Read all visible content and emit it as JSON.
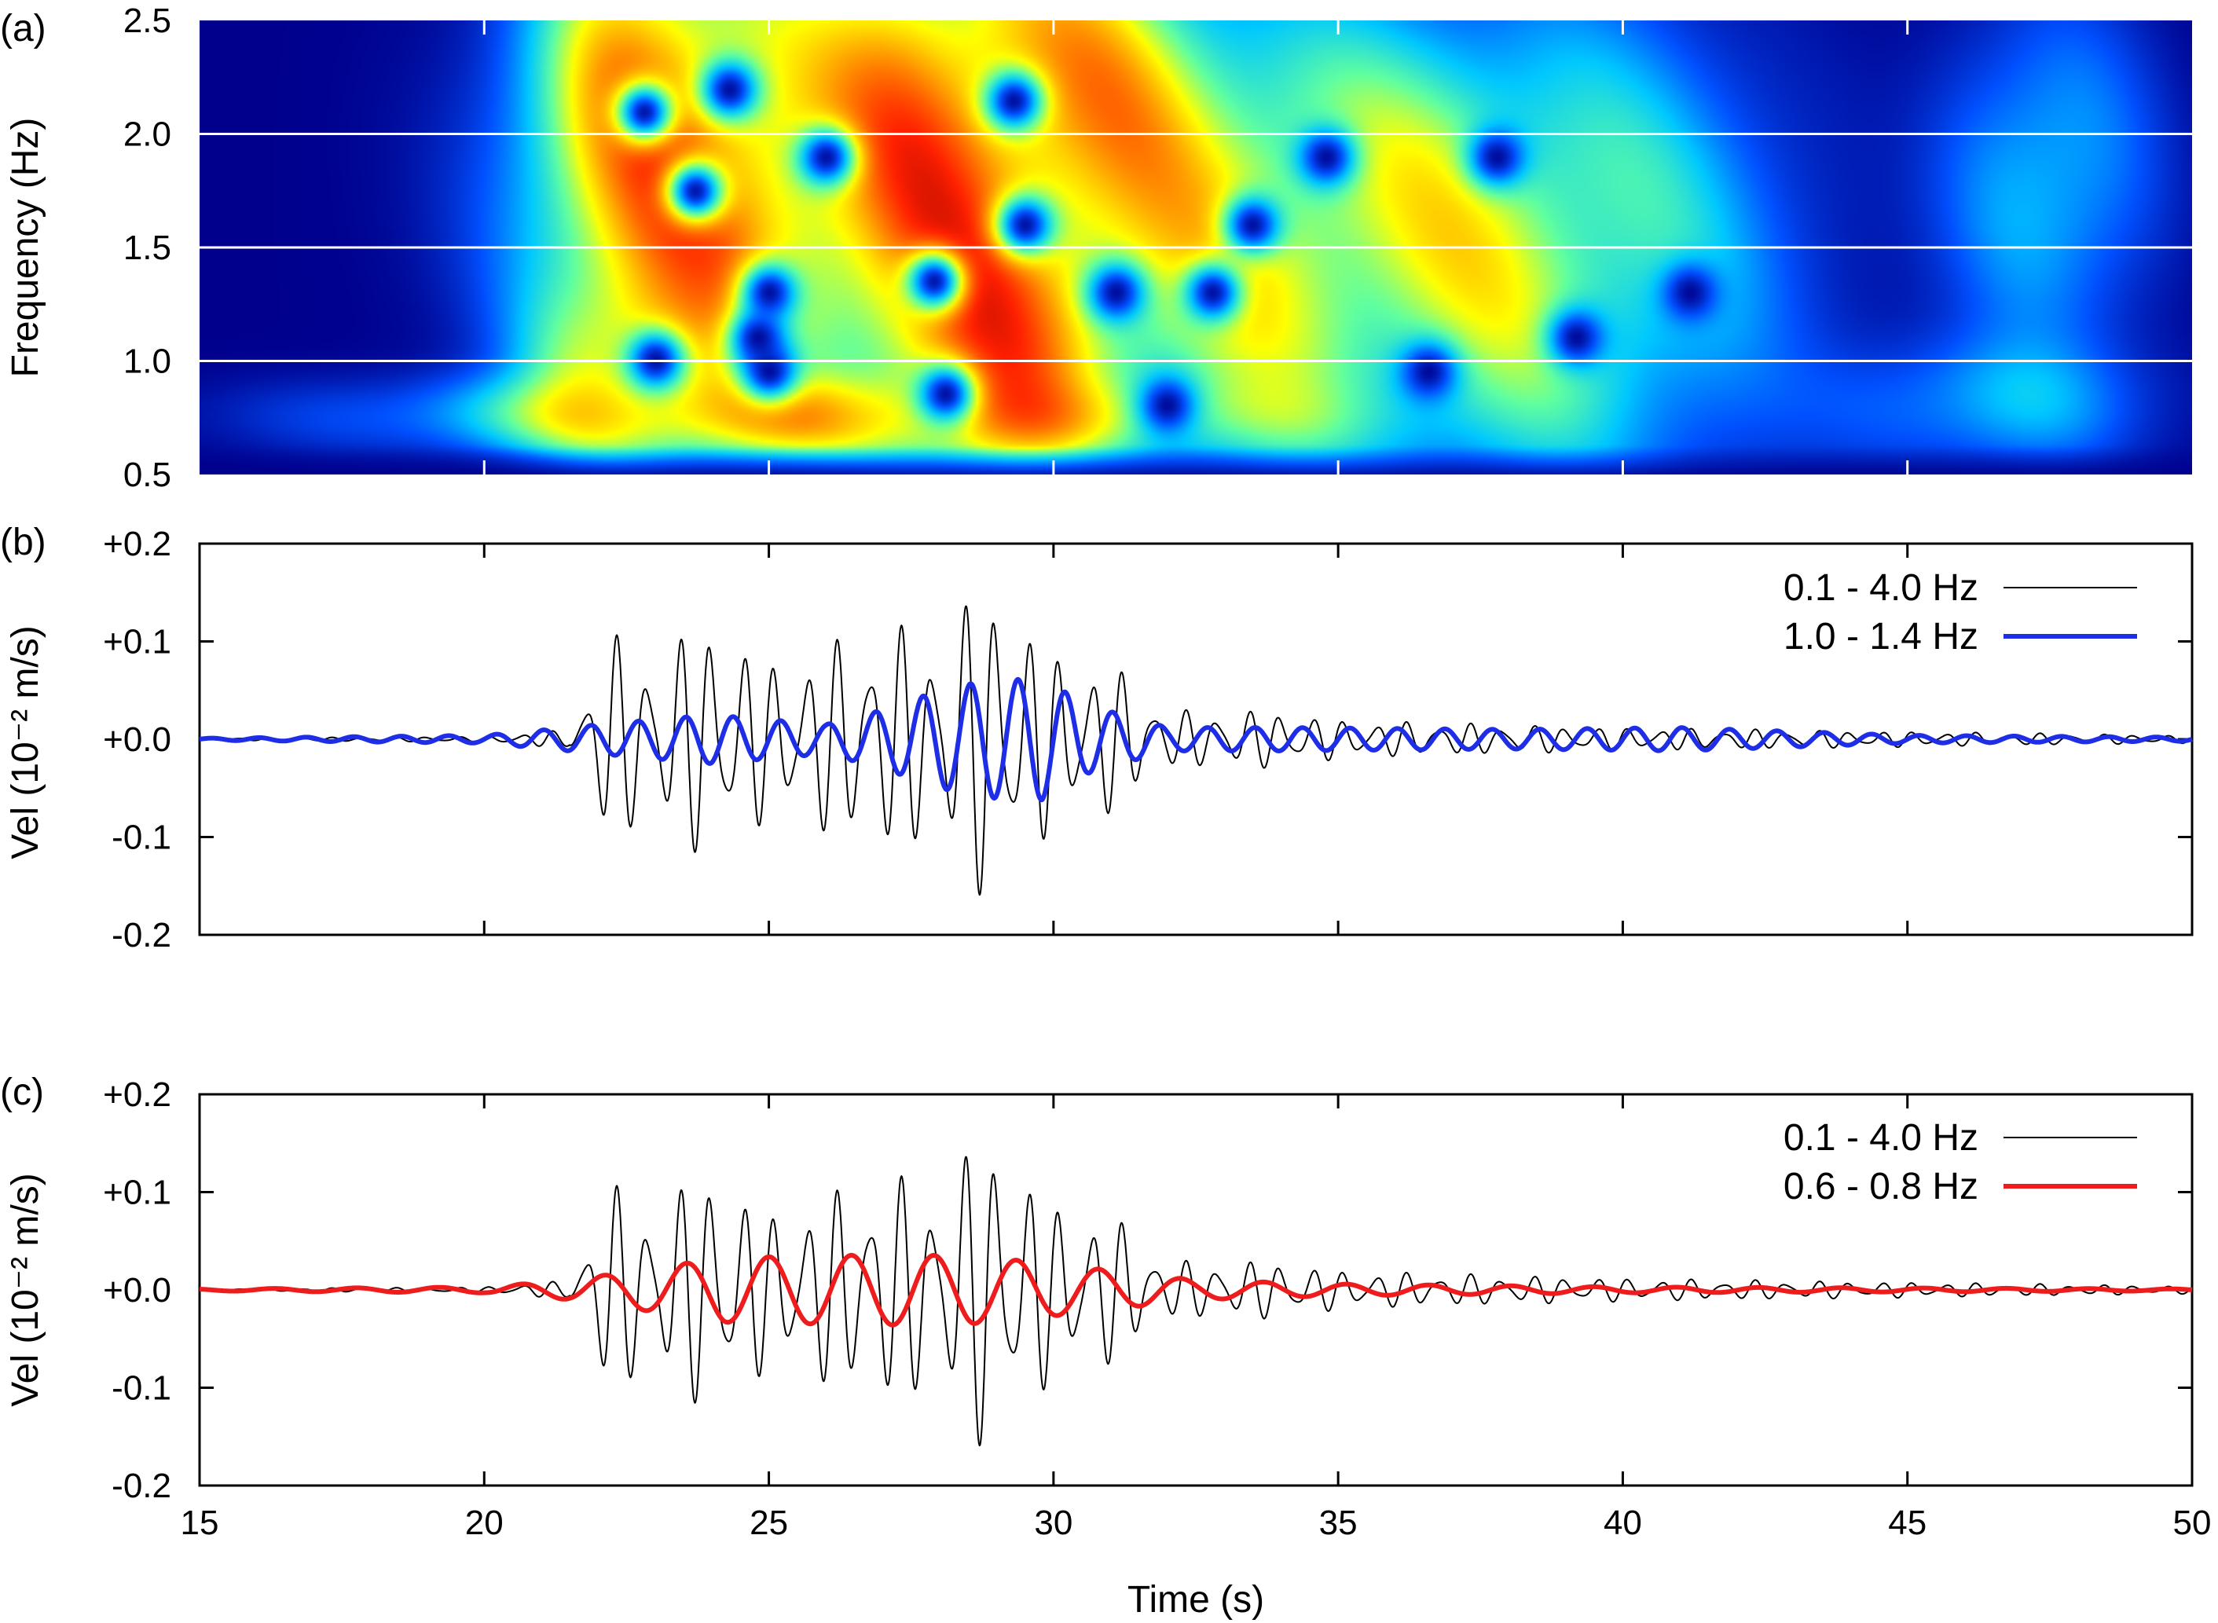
{
  "chart_data": [
    {
      "panel_label": "(a)",
      "type": "heatmap",
      "xlim": [
        15,
        50
      ],
      "ylim": [
        0.5,
        2.5
      ],
      "ylabel": "Frequency (Hz)",
      "y_ticks": [
        "0.5",
        "1.0",
        "1.5",
        "2.0",
        "2.5"
      ],
      "x_ticks": [
        20,
        25,
        30,
        35,
        40,
        45
      ],
      "reference_lines_hz": [
        1.0,
        1.5,
        2.0
      ],
      "colorscale": [
        "#00008c",
        "#0050ff",
        "#00c8ff",
        "#60ffa0",
        "#ffff00",
        "#ff9000",
        "#ff2000",
        "#8c0000"
      ],
      "energy_blobs": [
        {
          "t": 25.2,
          "f": 1.8,
          "st": 2.4,
          "sf": 0.6,
          "a": 0.9
        },
        {
          "t": 28.3,
          "f": 1.8,
          "st": 1.2,
          "sf": 0.75,
          "a": 1.0
        },
        {
          "t": 23.0,
          "f": 2.0,
          "st": 1.3,
          "sf": 0.7,
          "a": 0.8
        },
        {
          "t": 30.5,
          "f": 2.1,
          "st": 1.4,
          "sf": 0.5,
          "a": 0.75
        },
        {
          "t": 26.0,
          "f": 0.75,
          "st": 4.5,
          "sf": 0.12,
          "a": 0.65
        },
        {
          "t": 29.5,
          "f": 1.1,
          "st": 1.2,
          "sf": 0.3,
          "a": 0.7
        },
        {
          "t": 22.5,
          "f": 1.0,
          "st": 1.0,
          "sf": 0.25,
          "a": 0.55
        },
        {
          "t": 33.0,
          "f": 1.5,
          "st": 1.8,
          "sf": 0.7,
          "a": 0.45
        },
        {
          "t": 36.0,
          "f": 1.6,
          "st": 2.5,
          "sf": 0.6,
          "a": 0.4
        },
        {
          "t": 39.0,
          "f": 1.4,
          "st": 2.5,
          "sf": 0.7,
          "a": 0.38
        },
        {
          "t": 47.5,
          "f": 1.8,
          "st": 1.2,
          "sf": 0.5,
          "a": 0.28
        },
        {
          "t": 46.5,
          "f": 0.8,
          "st": 1.8,
          "sf": 0.2,
          "a": 0.22
        }
      ],
      "energy_holes": [
        {
          "t": 22.8,
          "f": 2.1
        },
        {
          "t": 24.3,
          "f": 2.2
        },
        {
          "t": 23.7,
          "f": 1.75
        },
        {
          "t": 26.0,
          "f": 1.9
        },
        {
          "t": 29.3,
          "f": 2.15
        },
        {
          "t": 29.5,
          "f": 1.6
        },
        {
          "t": 25.0,
          "f": 1.3
        },
        {
          "t": 24.8,
          "f": 1.1
        },
        {
          "t": 23.0,
          "f": 1.0
        },
        {
          "t": 25.0,
          "f": 0.95
        },
        {
          "t": 27.9,
          "f": 1.35
        },
        {
          "t": 28.1,
          "f": 0.85
        },
        {
          "t": 32.0,
          "f": 0.8
        },
        {
          "t": 31.1,
          "f": 1.3
        },
        {
          "t": 32.8,
          "f": 1.3
        },
        {
          "t": 34.8,
          "f": 1.9
        },
        {
          "t": 33.5,
          "f": 1.6
        },
        {
          "t": 36.6,
          "f": 0.95
        },
        {
          "t": 41.2,
          "f": 1.3
        },
        {
          "t": 39.2,
          "f": 1.1
        },
        {
          "t": 37.8,
          "f": 1.9
        }
      ]
    },
    {
      "panel_label": "(b)",
      "type": "line",
      "xlim": [
        15,
        50
      ],
      "ylim": [
        -0.2,
        0.2
      ],
      "ylabel": "Vel (10⁻² m/s)",
      "y_ticks": [
        0.2,
        0.1,
        0.0,
        -0.1,
        -0.2
      ],
      "y_tick_labels": [
        "+0.2",
        "+0.1",
        "+0.0",
        "-0.1",
        "-0.2"
      ],
      "x_ticks": [
        20,
        25,
        30,
        35,
        40,
        45
      ],
      "series": [
        {
          "name": "0.1 - 4.0 Hz",
          "color": "#000000",
          "width": 2,
          "wave": {
            "f": 1.8,
            "f2": 2.6,
            "envelope": [
              [
                15,
                0.001
              ],
              [
                20,
                0.003
              ],
              [
                21.5,
                0.01
              ],
              [
                22.2,
                0.11
              ],
              [
                23,
                0.09
              ],
              [
                24,
                0.13
              ],
              [
                25,
                0.08
              ],
              [
                26,
                0.1
              ],
              [
                27,
                0.12
              ],
              [
                28,
                0.11
              ],
              [
                28.8,
                0.17
              ],
              [
                29.3,
                0.14
              ],
              [
                30,
                0.09
              ],
              [
                31,
                0.08
              ],
              [
                32,
                0.03
              ],
              [
                34,
                0.03
              ],
              [
                35,
                0.02
              ],
              [
                40,
                0.012
              ],
              [
                45,
                0.008
              ],
              [
                50,
                0.004
              ]
            ]
          }
        },
        {
          "name": "1.0 - 1.4 Hz",
          "color": "#1e2ee6",
          "width": 6,
          "wave": {
            "f": 1.2,
            "envelope": [
              [
                15,
                0.001
              ],
              [
                20,
                0.004
              ],
              [
                21.5,
                0.012
              ],
              [
                22,
                0.015
              ],
              [
                24,
                0.025
              ],
              [
                26,
                0.015
              ],
              [
                27,
                0.03
              ],
              [
                28,
                0.05
              ],
              [
                28.8,
                0.06
              ],
              [
                29.8,
                0.062
              ],
              [
                30.6,
                0.035
              ],
              [
                32,
                0.012
              ],
              [
                34,
                0.012
              ],
              [
                38,
                0.01
              ],
              [
                41,
                0.012
              ],
              [
                45,
                0.004
              ],
              [
                50,
                0.002
              ]
            ]
          }
        }
      ]
    },
    {
      "panel_label": "(c)",
      "type": "line",
      "xlim": [
        15,
        50
      ],
      "ylim": [
        -0.2,
        0.2
      ],
      "xlabel": "Time (s)",
      "ylabel": "Vel (10⁻² m/s)",
      "y_ticks": [
        0.2,
        0.1,
        0.0,
        -0.1,
        -0.2
      ],
      "y_tick_labels": [
        "+0.2",
        "+0.1",
        "+0.0",
        "-0.1",
        "-0.2"
      ],
      "x_ticks": [
        15,
        20,
        25,
        30,
        35,
        40,
        45,
        50
      ],
      "series": [
        {
          "name": "0.1 - 4.0 Hz",
          "color": "#000000",
          "width": 2,
          "wave": {
            "f": 1.8,
            "f2": 2.6,
            "envelope": [
              [
                15,
                0.001
              ],
              [
                20,
                0.003
              ],
              [
                21.5,
                0.01
              ],
              [
                22.2,
                0.11
              ],
              [
                23,
                0.09
              ],
              [
                24,
                0.13
              ],
              [
                25,
                0.08
              ],
              [
                26,
                0.1
              ],
              [
                27,
                0.12
              ],
              [
                28,
                0.11
              ],
              [
                28.8,
                0.17
              ],
              [
                29.3,
                0.14
              ],
              [
                30,
                0.09
              ],
              [
                31,
                0.08
              ],
              [
                32,
                0.03
              ],
              [
                34,
                0.03
              ],
              [
                35,
                0.02
              ],
              [
                40,
                0.012
              ],
              [
                45,
                0.008
              ],
              [
                50,
                0.004
              ]
            ]
          }
        },
        {
          "name": "0.6 - 0.8 Hz",
          "color": "#ee1c1c",
          "width": 6,
          "wave": {
            "f": 0.69,
            "envelope": [
              [
                15,
                0.001
              ],
              [
                20,
                0.003
              ],
              [
                21.5,
                0.01
              ],
              [
                22.7,
                0.02
              ],
              [
                24.2,
                0.033
              ],
              [
                26,
                0.035
              ],
              [
                27,
                0.036
              ],
              [
                28.5,
                0.035
              ],
              [
                29.8,
                0.028
              ],
              [
                31,
                0.02
              ],
              [
                32.5,
                0.01
              ],
              [
                35,
                0.006
              ],
              [
                40,
                0.003
              ],
              [
                45,
                0.002
              ],
              [
                50,
                0.001
              ]
            ]
          }
        }
      ]
    }
  ]
}
